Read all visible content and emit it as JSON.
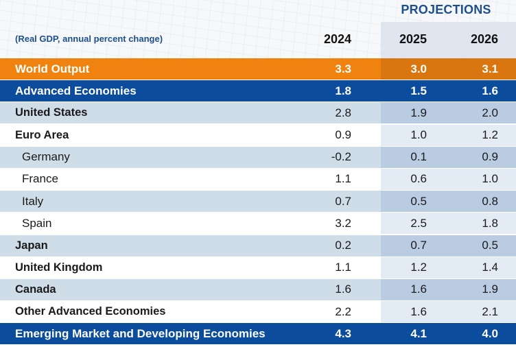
{
  "header": {
    "projections_label": "PROJECTIONS",
    "subtitle": "(Real GDP, annual percent change)",
    "years": [
      "2024",
      "2025",
      "2026"
    ]
  },
  "colors": {
    "orange": "#f0820f",
    "blue": "#0b4c9c",
    "light_row": "#cfdde9",
    "title_blue": "#1d4f8c"
  },
  "rows": [
    {
      "name": "World Output",
      "style": "orange",
      "values": [
        "3.3",
        "3.0",
        "3.1"
      ]
    },
    {
      "name": "Advanced Economies",
      "style": "blue",
      "values": [
        "1.8",
        "1.5",
        "1.6"
      ]
    },
    {
      "name": "United States",
      "style": "light",
      "values": [
        "2.8",
        "1.9",
        "2.0"
      ]
    },
    {
      "name": "Euro Area",
      "style": "white",
      "values": [
        "0.9",
        "1.0",
        "1.2"
      ]
    },
    {
      "name": "Germany",
      "style": "light-sub",
      "values": [
        "-0.2",
        "0.1",
        "0.9"
      ]
    },
    {
      "name": "France",
      "style": "white-sub",
      "values": [
        "1.1",
        "0.6",
        "1.0"
      ]
    },
    {
      "name": "Italy",
      "style": "light-sub",
      "values": [
        "0.7",
        "0.5",
        "0.8"
      ]
    },
    {
      "name": "Spain",
      "style": "white-sub",
      "values": [
        "3.2",
        "2.5",
        "1.8"
      ]
    },
    {
      "name": "Japan",
      "style": "light",
      "values": [
        "0.2",
        "0.7",
        "0.5"
      ]
    },
    {
      "name": "United Kingdom",
      "style": "white",
      "values": [
        "1.1",
        "1.2",
        "1.4"
      ]
    },
    {
      "name": "Canada",
      "style": "light",
      "values": [
        "1.6",
        "1.6",
        "1.9"
      ]
    },
    {
      "name": "Other Advanced Economies",
      "style": "white",
      "values": [
        "2.2",
        "1.6",
        "2.1"
      ]
    },
    {
      "name": "Emerging Market and Developing Economies",
      "style": "blue",
      "values": [
        "4.3",
        "4.1",
        "4.0"
      ]
    }
  ]
}
